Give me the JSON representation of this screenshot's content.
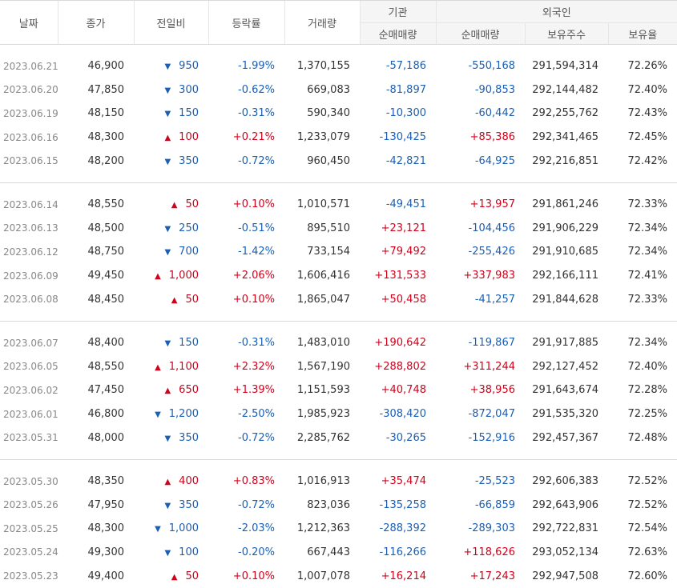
{
  "header": {
    "date": "날짜",
    "close": "종가",
    "change": "전일비",
    "rate": "등락률",
    "volume": "거래량",
    "institution": "기관",
    "foreign": "외국인",
    "inst_net": "순매매량",
    "foreign_net": "순매매량",
    "foreign_holdings": "보유주수",
    "foreign_ratio": "보유율"
  },
  "icons": {
    "up": "triangle-up-icon",
    "down": "triangle-down-icon"
  },
  "colors": {
    "up": "#d0021b",
    "down": "#1a5fb4",
    "date_text": "#888888",
    "header_bg": "#f5f5f5"
  },
  "groups": [
    {
      "rows": [
        {
          "date": "2023.06.21",
          "close": "46,900",
          "dir": "down",
          "change": "950",
          "rate": "-1.99%",
          "volume": "1,370,155",
          "inst": "-57,186",
          "foreign": "-550,168",
          "holdings": "291,594,314",
          "ratio": "72.26%"
        },
        {
          "date": "2023.06.20",
          "close": "47,850",
          "dir": "down",
          "change": "300",
          "rate": "-0.62%",
          "volume": "669,083",
          "inst": "-81,897",
          "foreign": "-90,853",
          "holdings": "292,144,482",
          "ratio": "72.40%"
        },
        {
          "date": "2023.06.19",
          "close": "48,150",
          "dir": "down",
          "change": "150",
          "rate": "-0.31%",
          "volume": "590,340",
          "inst": "-10,300",
          "foreign": "-60,442",
          "holdings": "292,255,762",
          "ratio": "72.43%"
        },
        {
          "date": "2023.06.16",
          "close": "48,300",
          "dir": "up",
          "change": "100",
          "rate": "+0.21%",
          "volume": "1,233,079",
          "inst": "-130,425",
          "foreign": "+85,386",
          "holdings": "292,341,465",
          "ratio": "72.45%"
        },
        {
          "date": "2023.06.15",
          "close": "48,200",
          "dir": "down",
          "change": "350",
          "rate": "-0.72%",
          "volume": "960,450",
          "inst": "-42,821",
          "foreign": "-64,925",
          "holdings": "292,216,851",
          "ratio": "72.42%"
        }
      ]
    },
    {
      "rows": [
        {
          "date": "2023.06.14",
          "close": "48,550",
          "dir": "up",
          "change": "50",
          "rate": "+0.10%",
          "volume": "1,010,571",
          "inst": "-49,451",
          "foreign": "+13,957",
          "holdings": "291,861,246",
          "ratio": "72.33%"
        },
        {
          "date": "2023.06.13",
          "close": "48,500",
          "dir": "down",
          "change": "250",
          "rate": "-0.51%",
          "volume": "895,510",
          "inst": "+23,121",
          "foreign": "-104,456",
          "holdings": "291,906,229",
          "ratio": "72.34%"
        },
        {
          "date": "2023.06.12",
          "close": "48,750",
          "dir": "down",
          "change": "700",
          "rate": "-1.42%",
          "volume": "733,154",
          "inst": "+79,492",
          "foreign": "-255,426",
          "holdings": "291,910,685",
          "ratio": "72.34%"
        },
        {
          "date": "2023.06.09",
          "close": "49,450",
          "dir": "up",
          "change": "1,000",
          "rate": "+2.06%",
          "volume": "1,606,416",
          "inst": "+131,533",
          "foreign": "+337,983",
          "holdings": "292,166,111",
          "ratio": "72.41%"
        },
        {
          "date": "2023.06.08",
          "close": "48,450",
          "dir": "up",
          "change": "50",
          "rate": "+0.10%",
          "volume": "1,865,047",
          "inst": "+50,458",
          "foreign": "-41,257",
          "holdings": "291,844,628",
          "ratio": "72.33%"
        }
      ]
    },
    {
      "rows": [
        {
          "date": "2023.06.07",
          "close": "48,400",
          "dir": "down",
          "change": "150",
          "rate": "-0.31%",
          "volume": "1,483,010",
          "inst": "+190,642",
          "foreign": "-119,867",
          "holdings": "291,917,885",
          "ratio": "72.34%"
        },
        {
          "date": "2023.06.05",
          "close": "48,550",
          "dir": "up",
          "change": "1,100",
          "rate": "+2.32%",
          "volume": "1,567,190",
          "inst": "+288,802",
          "foreign": "+311,244",
          "holdings": "292,127,452",
          "ratio": "72.40%"
        },
        {
          "date": "2023.06.02",
          "close": "47,450",
          "dir": "up",
          "change": "650",
          "rate": "+1.39%",
          "volume": "1,151,593",
          "inst": "+40,748",
          "foreign": "+38,956",
          "holdings": "291,643,674",
          "ratio": "72.28%"
        },
        {
          "date": "2023.06.01",
          "close": "46,800",
          "dir": "down",
          "change": "1,200",
          "rate": "-2.50%",
          "volume": "1,985,923",
          "inst": "-308,420",
          "foreign": "-872,047",
          "holdings": "291,535,320",
          "ratio": "72.25%"
        },
        {
          "date": "2023.05.31",
          "close": "48,000",
          "dir": "down",
          "change": "350",
          "rate": "-0.72%",
          "volume": "2,285,762",
          "inst": "-30,265",
          "foreign": "-152,916",
          "holdings": "292,457,367",
          "ratio": "72.48%"
        }
      ]
    },
    {
      "rows": [
        {
          "date": "2023.05.30",
          "close": "48,350",
          "dir": "up",
          "change": "400",
          "rate": "+0.83%",
          "volume": "1,016,913",
          "inst": "+35,474",
          "foreign": "-25,523",
          "holdings": "292,606,383",
          "ratio": "72.52%"
        },
        {
          "date": "2023.05.26",
          "close": "47,950",
          "dir": "down",
          "change": "350",
          "rate": "-0.72%",
          "volume": "823,036",
          "inst": "-135,258",
          "foreign": "-66,859",
          "holdings": "292,643,906",
          "ratio": "72.52%"
        },
        {
          "date": "2023.05.25",
          "close": "48,300",
          "dir": "down",
          "change": "1,000",
          "rate": "-2.03%",
          "volume": "1,212,363",
          "inst": "-288,392",
          "foreign": "-289,303",
          "holdings": "292,722,831",
          "ratio": "72.54%"
        },
        {
          "date": "2023.05.24",
          "close": "49,300",
          "dir": "down",
          "change": "100",
          "rate": "-0.20%",
          "volume": "667,443",
          "inst": "-116,266",
          "foreign": "+118,626",
          "holdings": "293,052,134",
          "ratio": "72.63%"
        },
        {
          "date": "2023.05.23",
          "close": "49,400",
          "dir": "up",
          "change": "50",
          "rate": "+0.10%",
          "volume": "1,007,078",
          "inst": "+16,214",
          "foreign": "+17,243",
          "holdings": "292,947,508",
          "ratio": "72.60%"
        }
      ]
    }
  ]
}
